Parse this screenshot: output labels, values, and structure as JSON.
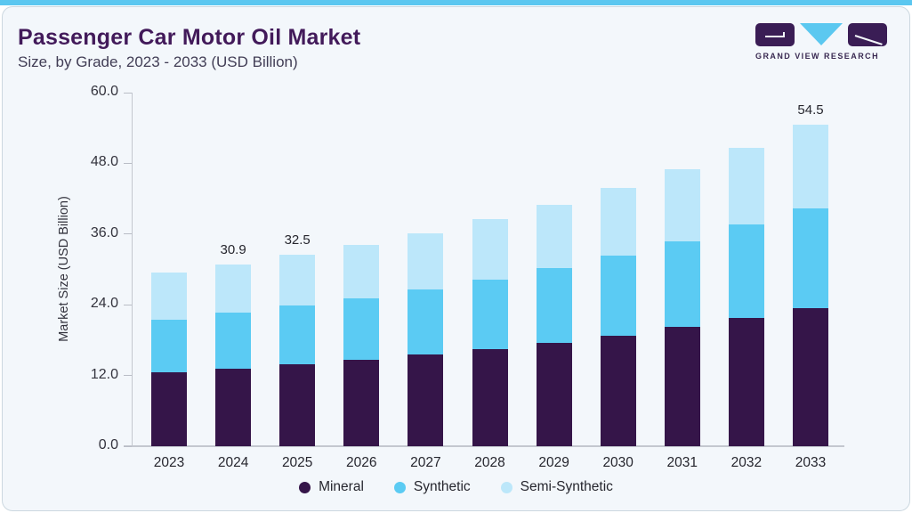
{
  "header": {
    "title": "Passenger Car Motor Oil Market",
    "subtitle": "Size, by Grade, 2023 - 2033 (USD Billion)"
  },
  "logo": {
    "brand": "GRAND VIEW RESEARCH",
    "icon": "gvr-logo",
    "accent_color": "#5bc8f0",
    "dark_color": "#3a1d55"
  },
  "chart_data": {
    "type": "bar",
    "stacked": true,
    "title": "Passenger Car Motor Oil Market Size, by Grade, 2023 - 2033 (USD Billion)",
    "xlabel": "",
    "ylabel": "Market Size (USD Billion)",
    "ylim": [
      0,
      60
    ],
    "yticks": [
      0,
      12,
      24,
      36,
      48,
      60
    ],
    "ytick_labels": [
      "0.0",
      "12.0",
      "24.0",
      "36.0",
      "48.0",
      "60.0"
    ],
    "grid": false,
    "legend_position": "bottom",
    "categories": [
      "2023",
      "2024",
      "2025",
      "2026",
      "2027",
      "2028",
      "2029",
      "2030",
      "2031",
      "2032",
      "2033"
    ],
    "series": [
      {
        "name": "Mineral",
        "color": "#351549",
        "values": [
          12.5,
          13.2,
          13.9,
          14.6,
          15.5,
          16.5,
          17.6,
          18.8,
          20.2,
          21.7,
          23.4
        ]
      },
      {
        "name": "Synthetic",
        "color": "#5bcbf3",
        "values": [
          9.0,
          9.5,
          10.0,
          10.5,
          11.1,
          11.8,
          12.6,
          13.6,
          14.6,
          15.9,
          16.9
        ]
      },
      {
        "name": "Semi-Synthetic",
        "color": "#bce7fa",
        "values": [
          7.9,
          8.2,
          8.6,
          9.1,
          9.6,
          10.2,
          10.8,
          11.4,
          12.2,
          13.1,
          14.2
        ]
      }
    ],
    "totals": [
      29.4,
      30.9,
      32.5,
      34.2,
      36.2,
      38.5,
      41.0,
      43.8,
      47.0,
      50.7,
      54.5
    ],
    "total_labels": {
      "2024": "30.9",
      "2025": "32.5",
      "2033": "54.5"
    }
  }
}
